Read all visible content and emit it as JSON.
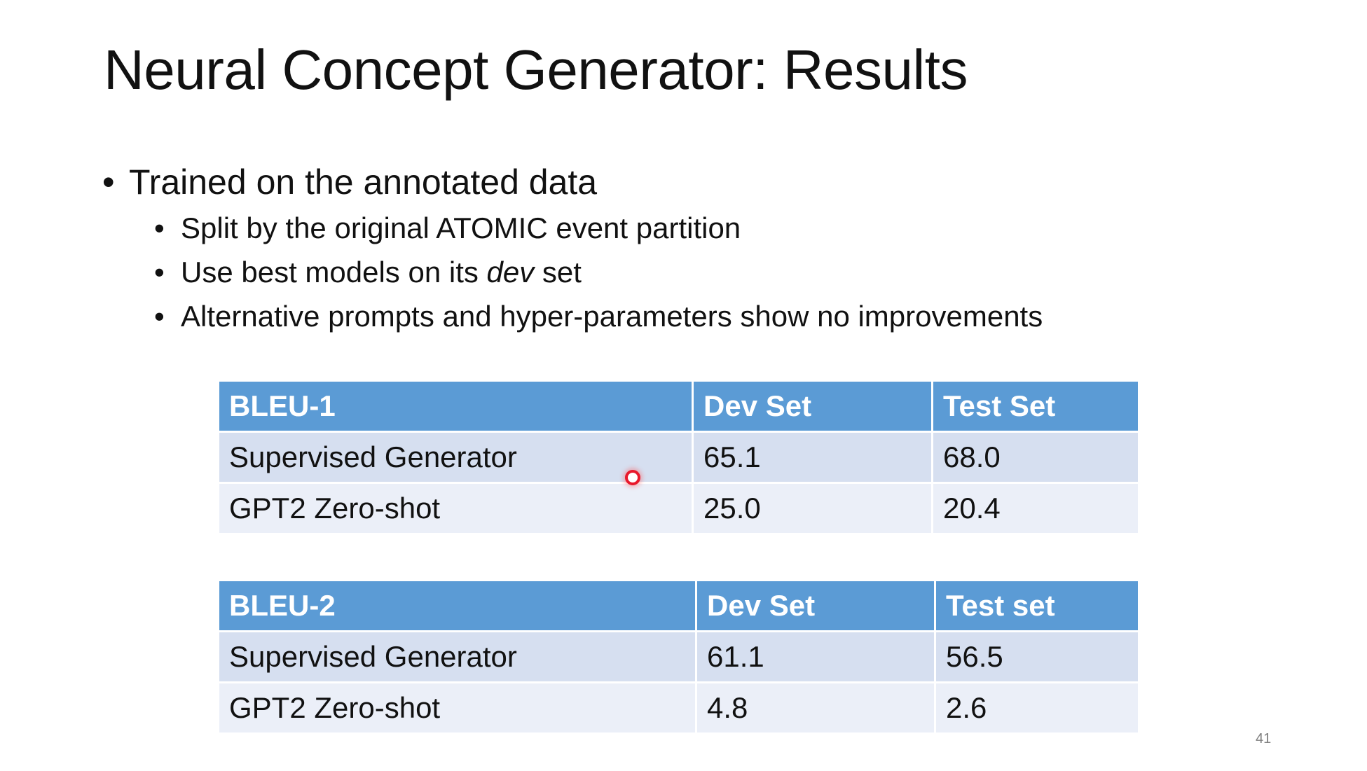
{
  "slide": {
    "title": "Neural Concept Generator: Results",
    "page_number": "41"
  },
  "bullets": {
    "main": "Trained on the annotated data",
    "sub": [
      "Split by the original ATOMIC event partition",
      "Use best models on its ",
      "dev",
      " set",
      "Alternative prompts and hyper-parameters show no improvements"
    ]
  },
  "tables": [
    {
      "headers": [
        "BLEU-1",
        "Dev Set",
        "Test Set"
      ],
      "rows": [
        [
          "Supervised Generator",
          "65.1",
          "68.0"
        ],
        [
          "GPT2 Zero-shot",
          "25.0",
          "20.4"
        ]
      ]
    },
    {
      "headers": [
        "BLEU-2",
        "Dev Set",
        "Test set"
      ],
      "rows": [
        [
          "Supervised Generator",
          "61.1",
          "56.5"
        ],
        [
          "GPT2 Zero-shot",
          "4.8",
          "2.6"
        ]
      ]
    }
  ],
  "colors": {
    "header_bg": "#5b9bd5",
    "row_odd_bg": "#d6dff0",
    "row_even_bg": "#ebeff8",
    "pointer": "#e8192c"
  }
}
